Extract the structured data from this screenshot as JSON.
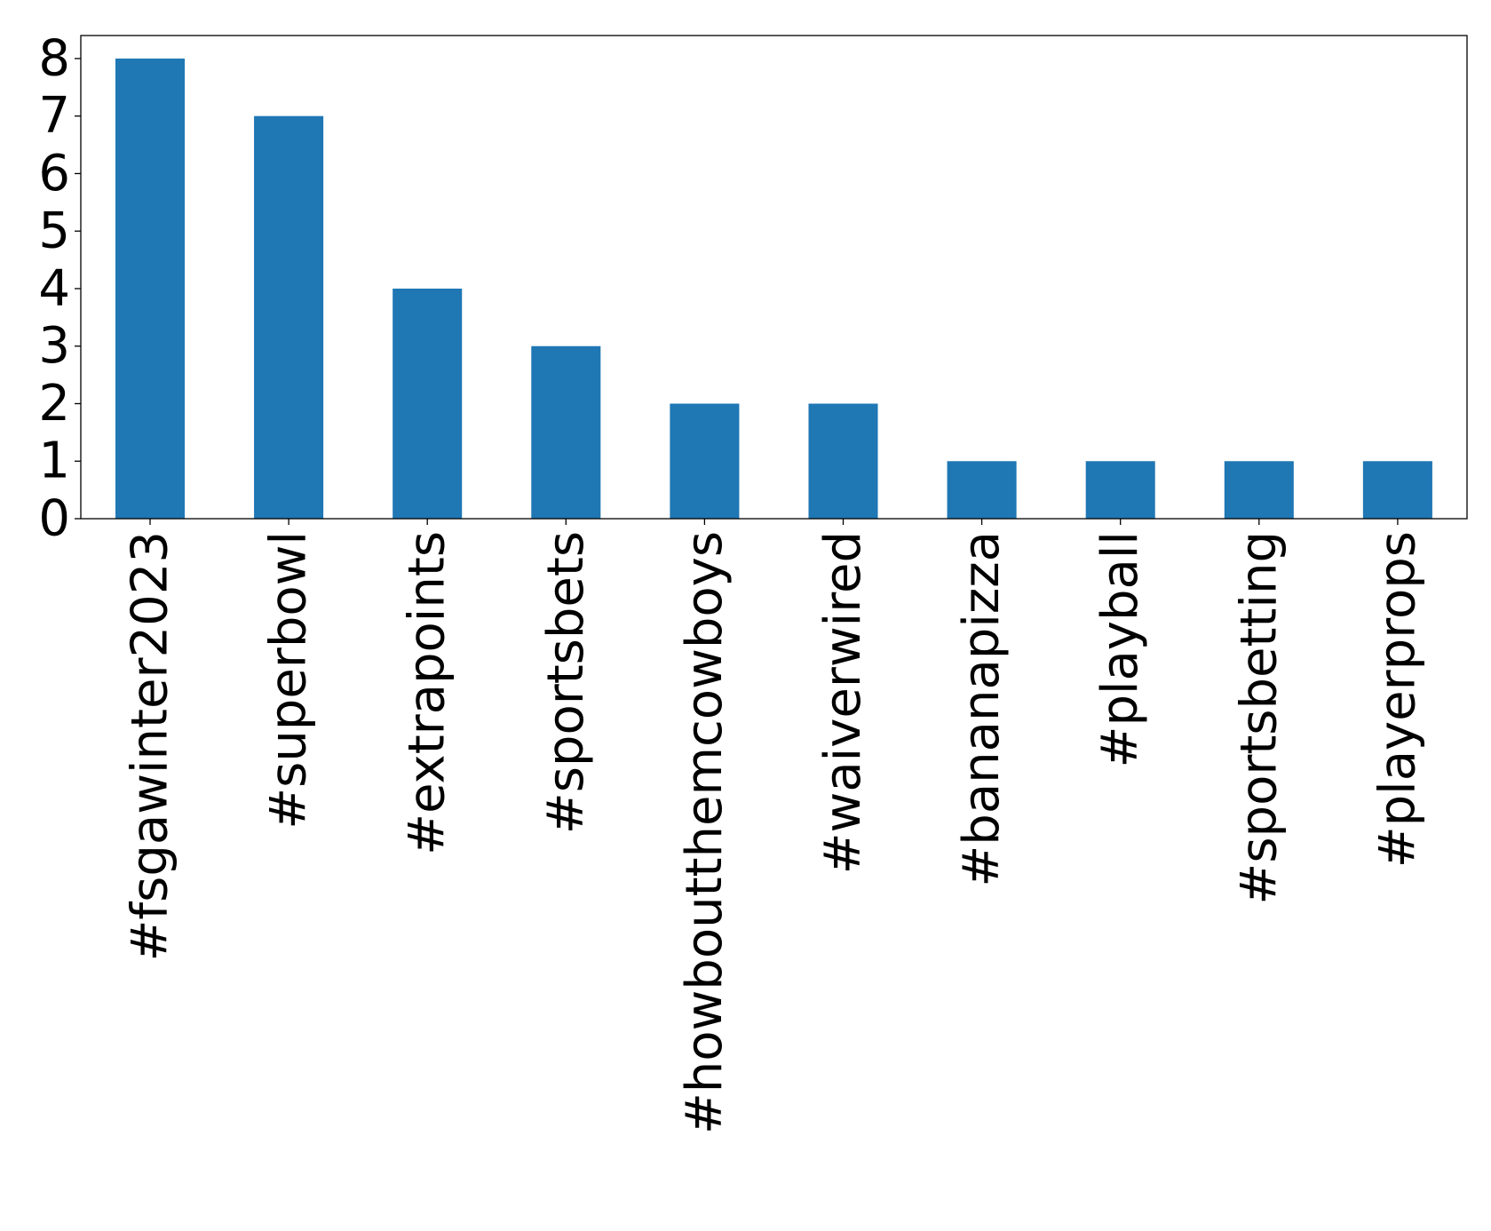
{
  "chart_data": {
    "type": "bar",
    "title": "",
    "xlabel": "",
    "ylabel": "",
    "categories": [
      "#fsgawinter2023",
      "#superbowl",
      "#extrapoints",
      "#sportsbets",
      "#howboutthemcowboys",
      "#waiverwired",
      "#bananapizza",
      "#playball",
      "#sportsbetting",
      "#playerprops"
    ],
    "values": [
      8,
      7,
      4,
      3,
      2,
      2,
      1,
      1,
      1,
      1
    ],
    "ylim": [
      0,
      8.4
    ],
    "yticks": [
      0,
      1,
      2,
      3,
      4,
      5,
      6,
      7,
      8
    ],
    "grid": false,
    "legend": "none",
    "bar_color": "#1f77b4"
  }
}
